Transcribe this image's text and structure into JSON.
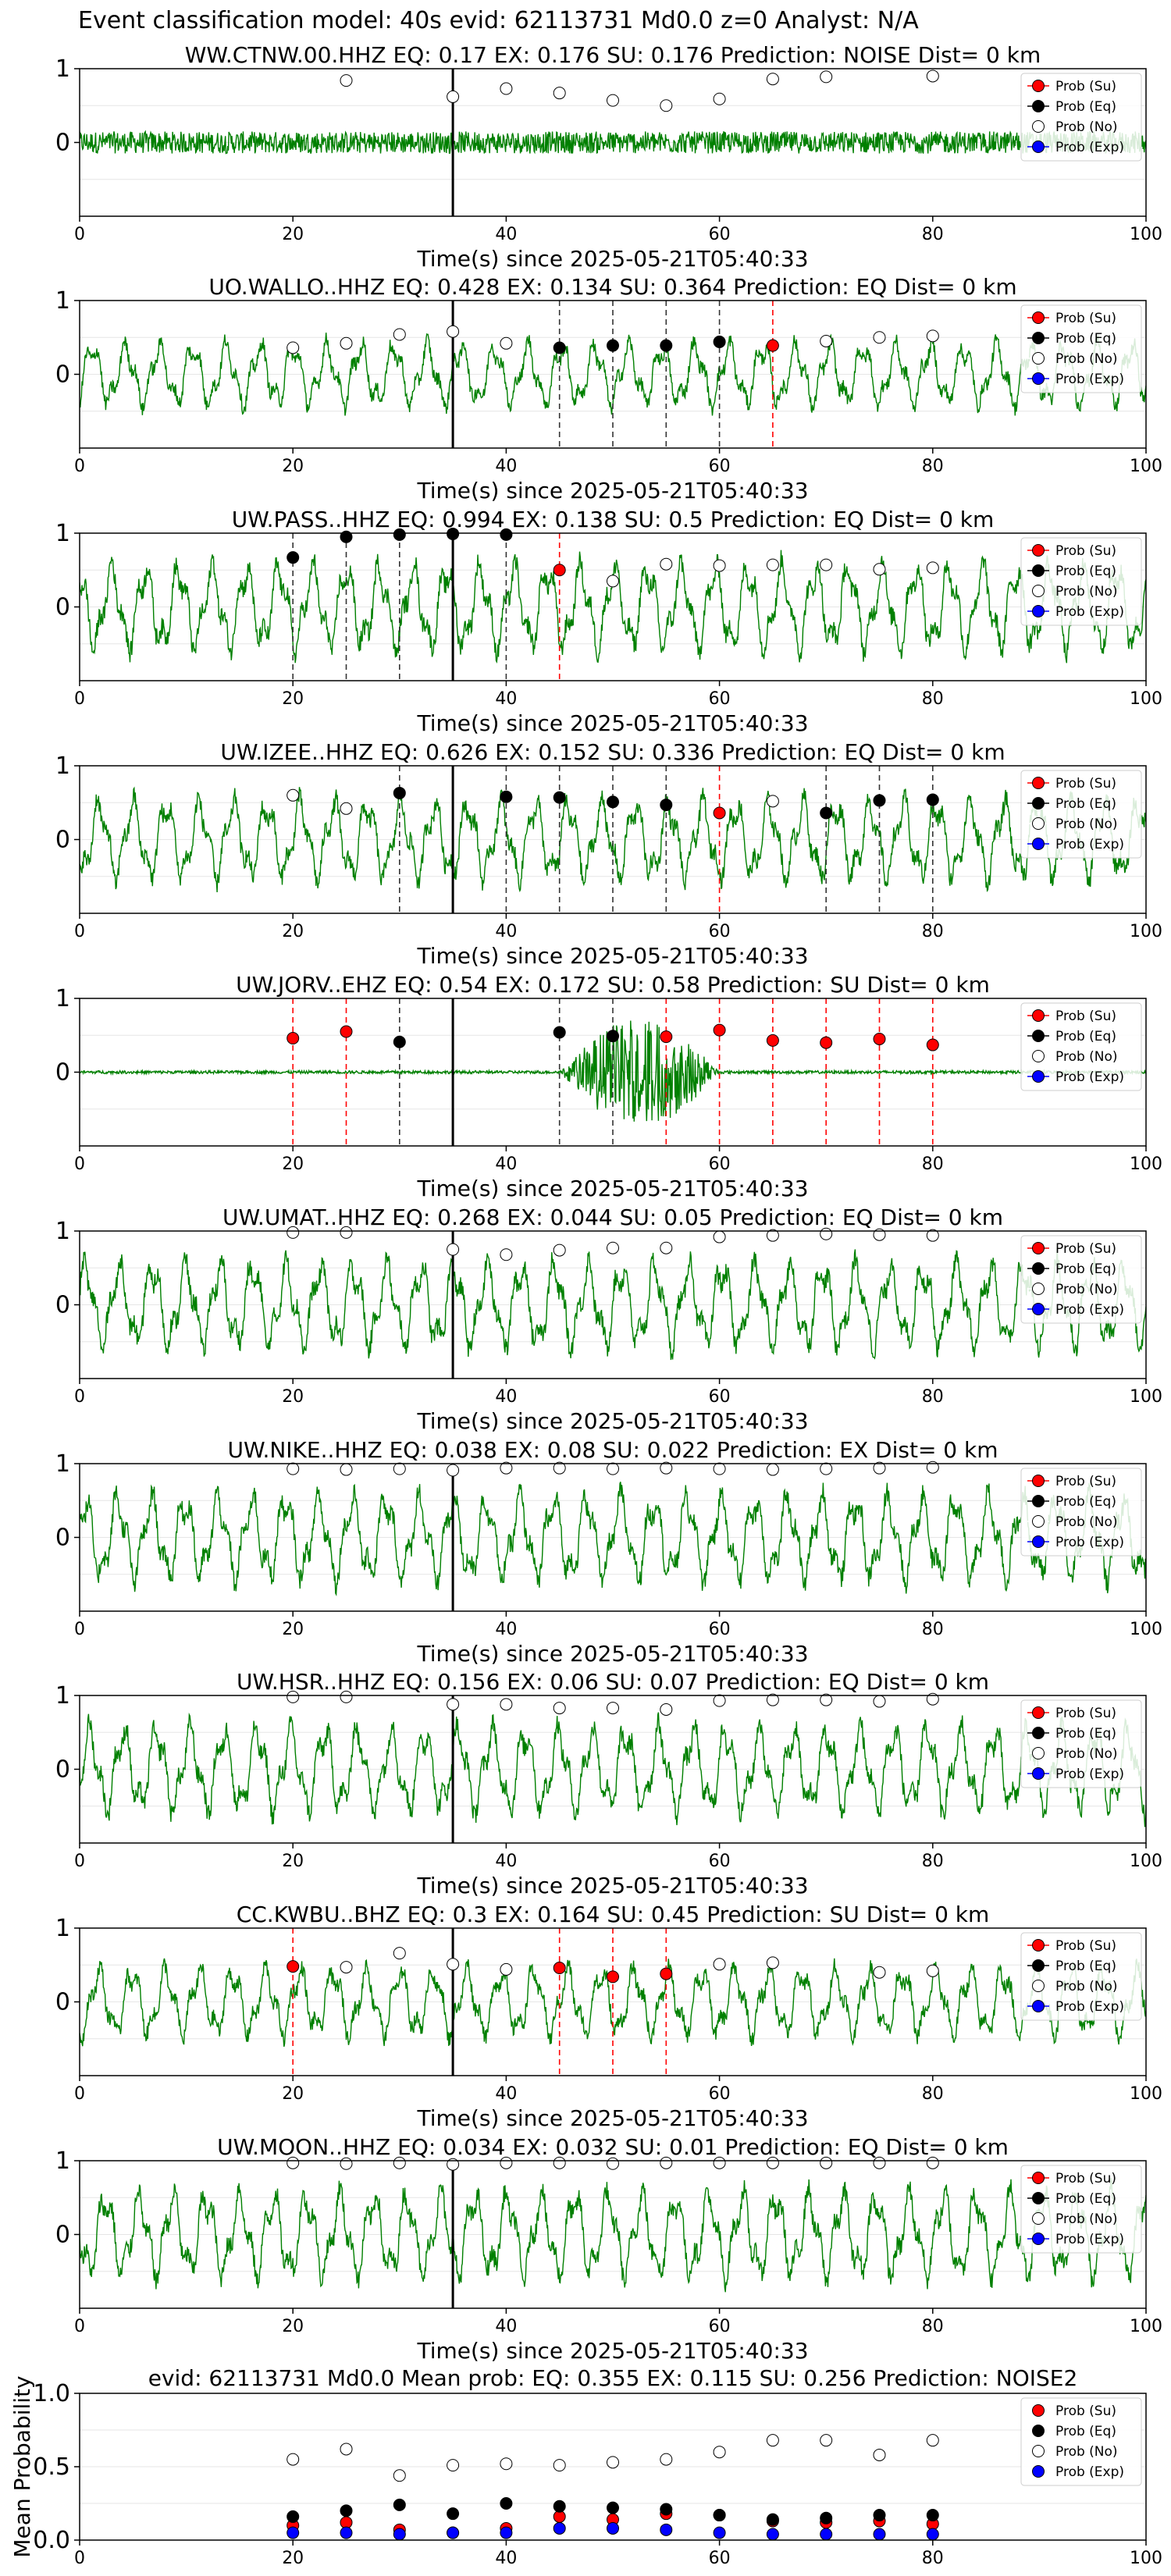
{
  "figure": {
    "suptitle": "Event classification model: 40s evid: 62113731 Md0.0 z=0 Analyst: N/A"
  },
  "colors": {
    "waveform": "#008000",
    "su": "#ff0000",
    "eq": "#000000",
    "no": "#ffffff",
    "exp": "#0000ff",
    "origin_line": "#000000"
  },
  "legend_labels": [
    "Prob (Su)",
    "Prob (Eq)",
    "Prob (No)",
    "Prob (Exp)"
  ],
  "chart_data": [
    {
      "type": "line",
      "panel": "station",
      "title": "WW.CTNW.00.HHZ   EQ: 0.17  EX: 0.176  SU: 0.176   Prediction: NOISE    Dist= 0 km",
      "xlabel": "Time(s) since 2025-05-21T05:40:33",
      "xlim": [
        0,
        100
      ],
      "ylim": [
        -1,
        1
      ],
      "xticks": [
        "0",
        "20",
        "40",
        "60",
        "80",
        "100"
      ],
      "yticks": [
        "1",
        "0"
      ],
      "origin_time": 35,
      "legend": "top-right",
      "waveform_amplitude": 0.15,
      "probabilities": [
        {
          "x": 25,
          "y": 0.84,
          "cls": "no"
        },
        {
          "x": 35,
          "y": 0.62,
          "cls": "no"
        },
        {
          "x": 40,
          "y": 0.73,
          "cls": "no"
        },
        {
          "x": 45,
          "y": 0.67,
          "cls": "no"
        },
        {
          "x": 50,
          "y": 0.57,
          "cls": "no"
        },
        {
          "x": 55,
          "y": 0.5,
          "cls": "no"
        },
        {
          "x": 60,
          "y": 0.59,
          "cls": "no"
        },
        {
          "x": 65,
          "y": 0.86,
          "cls": "no"
        },
        {
          "x": 70,
          "y": 0.89,
          "cls": "no"
        },
        {
          "x": 80,
          "y": 0.9,
          "cls": "no"
        }
      ]
    },
    {
      "type": "line",
      "panel": "station",
      "title": "UO.WALLO..HHZ   EQ: 0.428  EX: 0.134  SU: 0.364   Prediction: EQ    Dist= 0 km",
      "xlabel": "Time(s) since 2025-05-21T05:40:33",
      "xlim": [
        0,
        100
      ],
      "ylim": [
        -1,
        1
      ],
      "xticks": [
        "0",
        "20",
        "40",
        "60",
        "80",
        "100"
      ],
      "yticks": [
        "1",
        "0"
      ],
      "origin_time": 35,
      "legend": "top-right",
      "waveform_amplitude": 0.55,
      "probabilities": [
        {
          "x": 20,
          "y": 0.36,
          "cls": "no"
        },
        {
          "x": 25,
          "y": 0.42,
          "cls": "no"
        },
        {
          "x": 30,
          "y": 0.54,
          "cls": "no"
        },
        {
          "x": 35,
          "y": 0.58,
          "cls": "no"
        },
        {
          "x": 40,
          "y": 0.42,
          "cls": "no"
        },
        {
          "x": 45,
          "y": 0.36,
          "cls": "eq"
        },
        {
          "x": 50,
          "y": 0.39,
          "cls": "eq"
        },
        {
          "x": 55,
          "y": 0.39,
          "cls": "eq"
        },
        {
          "x": 60,
          "y": 0.44,
          "cls": "eq"
        },
        {
          "x": 65,
          "y": 0.39,
          "cls": "su"
        },
        {
          "x": 70,
          "y": 0.45,
          "cls": "no"
        },
        {
          "x": 75,
          "y": 0.5,
          "cls": "no"
        },
        {
          "x": 80,
          "y": 0.52,
          "cls": "no"
        }
      ]
    },
    {
      "type": "line",
      "panel": "station",
      "title": "UW.PASS..HHZ   EQ: 0.994  EX: 0.138  SU: 0.5   Prediction: EQ    Dist= 0 km",
      "xlabel": "Time(s) since 2025-05-21T05:40:33",
      "xlim": [
        0,
        100
      ],
      "ylim": [
        -1,
        1
      ],
      "xticks": [
        "0",
        "20",
        "40",
        "60",
        "80",
        "100"
      ],
      "yticks": [
        "1",
        "0"
      ],
      "origin_time": 35,
      "legend": "top-right",
      "waveform_amplitude": 0.75,
      "probabilities": [
        {
          "x": 20,
          "y": 0.67,
          "cls": "eq"
        },
        {
          "x": 25,
          "y": 0.95,
          "cls": "eq"
        },
        {
          "x": 30,
          "y": 0.98,
          "cls": "eq"
        },
        {
          "x": 35,
          "y": 0.99,
          "cls": "eq"
        },
        {
          "x": 40,
          "y": 0.98,
          "cls": "eq"
        },
        {
          "x": 45,
          "y": 0.5,
          "cls": "su"
        },
        {
          "x": 50,
          "y": 0.35,
          "cls": "no"
        },
        {
          "x": 55,
          "y": 0.58,
          "cls": "no"
        },
        {
          "x": 60,
          "y": 0.56,
          "cls": "no"
        },
        {
          "x": 65,
          "y": 0.57,
          "cls": "no"
        },
        {
          "x": 70,
          "y": 0.57,
          "cls": "no"
        },
        {
          "x": 75,
          "y": 0.51,
          "cls": "no"
        },
        {
          "x": 80,
          "y": 0.53,
          "cls": "no"
        }
      ]
    },
    {
      "type": "line",
      "panel": "station",
      "title": "UW.IZEE..HHZ   EQ: 0.626  EX: 0.152  SU: 0.336   Prediction: EQ    Dist= 0 km",
      "xlabel": "Time(s) since 2025-05-21T05:40:33",
      "xlim": [
        0,
        100
      ],
      "ylim": [
        -1,
        1
      ],
      "xticks": [
        "0",
        "20",
        "40",
        "60",
        "80",
        "100"
      ],
      "yticks": [
        "1",
        "0"
      ],
      "origin_time": 35,
      "legend": "top-right",
      "waveform_amplitude": 0.7,
      "probabilities": [
        {
          "x": 20,
          "y": 0.6,
          "cls": "no"
        },
        {
          "x": 25,
          "y": 0.42,
          "cls": "no"
        },
        {
          "x": 30,
          "y": 0.63,
          "cls": "eq"
        },
        {
          "x": 40,
          "y": 0.58,
          "cls": "eq"
        },
        {
          "x": 45,
          "y": 0.57,
          "cls": "eq"
        },
        {
          "x": 50,
          "y": 0.51,
          "cls": "eq"
        },
        {
          "x": 55,
          "y": 0.47,
          "cls": "eq"
        },
        {
          "x": 60,
          "y": 0.36,
          "cls": "su"
        },
        {
          "x": 65,
          "y": 0.52,
          "cls": "no"
        },
        {
          "x": 70,
          "y": 0.36,
          "cls": "eq"
        },
        {
          "x": 75,
          "y": 0.53,
          "cls": "eq"
        },
        {
          "x": 80,
          "y": 0.54,
          "cls": "eq"
        }
      ]
    },
    {
      "type": "line",
      "panel": "station",
      "title": "UW.JORV..EHZ   EQ: 0.54  EX: 0.172  SU: 0.58   Prediction: SU    Dist= 0 km",
      "xlabel": "Time(s) since 2025-05-21T05:40:33",
      "xlim": [
        0,
        100
      ],
      "ylim": [
        -1,
        1
      ],
      "xticks": [
        "0",
        "20",
        "40",
        "60",
        "80",
        "100"
      ],
      "yticks": [
        "1",
        "0"
      ],
      "origin_time": 35,
      "legend": "top-right",
      "waveform_amplitude": 0.02,
      "burst": {
        "start": 45,
        "end": 60,
        "amplitude": 0.75
      },
      "probabilities": [
        {
          "x": 20,
          "y": 0.46,
          "cls": "su"
        },
        {
          "x": 25,
          "y": 0.55,
          "cls": "su"
        },
        {
          "x": 30,
          "y": 0.41,
          "cls": "eq"
        },
        {
          "x": 45,
          "y": 0.54,
          "cls": "eq"
        },
        {
          "x": 50,
          "y": 0.49,
          "cls": "eq"
        },
        {
          "x": 55,
          "y": 0.48,
          "cls": "su"
        },
        {
          "x": 60,
          "y": 0.57,
          "cls": "su"
        },
        {
          "x": 65,
          "y": 0.43,
          "cls": "su"
        },
        {
          "x": 70,
          "y": 0.4,
          "cls": "su"
        },
        {
          "x": 75,
          "y": 0.45,
          "cls": "su"
        },
        {
          "x": 80,
          "y": 0.37,
          "cls": "su"
        }
      ]
    },
    {
      "type": "line",
      "panel": "station",
      "title": "UW.UMAT..HHZ   EQ: 0.268  EX: 0.044  SU: 0.05   Prediction: EQ    Dist= 0 km",
      "xlabel": "Time(s) since 2025-05-21T05:40:33",
      "xlim": [
        0,
        100
      ],
      "ylim": [
        -1,
        1
      ],
      "xticks": [
        "0",
        "20",
        "40",
        "60",
        "80",
        "100"
      ],
      "yticks": [
        "1",
        "0"
      ],
      "origin_time": 35,
      "legend": "top-right",
      "waveform_amplitude": 0.75,
      "probabilities": [
        {
          "x": 20,
          "y": 0.98,
          "cls": "no"
        },
        {
          "x": 25,
          "y": 0.98,
          "cls": "no"
        },
        {
          "x": 35,
          "y": 0.75,
          "cls": "no"
        },
        {
          "x": 40,
          "y": 0.68,
          "cls": "no"
        },
        {
          "x": 45,
          "y": 0.74,
          "cls": "no"
        },
        {
          "x": 50,
          "y": 0.77,
          "cls": "no"
        },
        {
          "x": 55,
          "y": 0.77,
          "cls": "no"
        },
        {
          "x": 60,
          "y": 0.92,
          "cls": "no"
        },
        {
          "x": 65,
          "y": 0.94,
          "cls": "no"
        },
        {
          "x": 70,
          "y": 0.96,
          "cls": "no"
        },
        {
          "x": 75,
          "y": 0.95,
          "cls": "no"
        },
        {
          "x": 80,
          "y": 0.94,
          "cls": "no"
        }
      ]
    },
    {
      "type": "line",
      "panel": "station",
      "title": "UW.NIKE..HHZ   EQ: 0.038  EX: 0.08  SU: 0.022   Prediction: EX    Dist= 0 km",
      "xlabel": "Time(s) since 2025-05-21T05:40:33",
      "xlim": [
        0,
        100
      ],
      "ylim": [
        -1,
        1
      ],
      "xticks": [
        "0",
        "20",
        "40",
        "60",
        "80",
        "100"
      ],
      "yticks": [
        "1",
        "0"
      ],
      "origin_time": 35,
      "legend": "top-right",
      "waveform_amplitude": 0.75,
      "probabilities": [
        {
          "x": 20,
          "y": 0.93,
          "cls": "no"
        },
        {
          "x": 25,
          "y": 0.92,
          "cls": "no"
        },
        {
          "x": 30,
          "y": 0.93,
          "cls": "no"
        },
        {
          "x": 35,
          "y": 0.91,
          "cls": "no"
        },
        {
          "x": 40,
          "y": 0.94,
          "cls": "no"
        },
        {
          "x": 45,
          "y": 0.94,
          "cls": "no"
        },
        {
          "x": 50,
          "y": 0.93,
          "cls": "no"
        },
        {
          "x": 55,
          "y": 0.94,
          "cls": "no"
        },
        {
          "x": 60,
          "y": 0.93,
          "cls": "no"
        },
        {
          "x": 65,
          "y": 0.92,
          "cls": "no"
        },
        {
          "x": 70,
          "y": 0.93,
          "cls": "no"
        },
        {
          "x": 75,
          "y": 0.94,
          "cls": "no"
        },
        {
          "x": 80,
          "y": 0.95,
          "cls": "no"
        }
      ]
    },
    {
      "type": "line",
      "panel": "station",
      "title": "UW.HSR..HHZ   EQ: 0.156  EX: 0.06  SU: 0.07   Prediction: EQ    Dist= 0 km",
      "xlabel": "Time(s) since 2025-05-21T05:40:33",
      "xlim": [
        0,
        100
      ],
      "ylim": [
        -1,
        1
      ],
      "xticks": [
        "0",
        "20",
        "40",
        "60",
        "80",
        "100"
      ],
      "yticks": [
        "1",
        "0"
      ],
      "origin_time": 35,
      "legend": "top-right",
      "waveform_amplitude": 0.75,
      "probabilities": [
        {
          "x": 20,
          "y": 0.98,
          "cls": "no"
        },
        {
          "x": 25,
          "y": 0.98,
          "cls": "no"
        },
        {
          "x": 35,
          "y": 0.88,
          "cls": "no"
        },
        {
          "x": 40,
          "y": 0.88,
          "cls": "no"
        },
        {
          "x": 45,
          "y": 0.83,
          "cls": "no"
        },
        {
          "x": 50,
          "y": 0.83,
          "cls": "no"
        },
        {
          "x": 55,
          "y": 0.81,
          "cls": "no"
        },
        {
          "x": 60,
          "y": 0.93,
          "cls": "no"
        },
        {
          "x": 65,
          "y": 0.94,
          "cls": "no"
        },
        {
          "x": 70,
          "y": 0.94,
          "cls": "no"
        },
        {
          "x": 75,
          "y": 0.92,
          "cls": "no"
        },
        {
          "x": 80,
          "y": 0.95,
          "cls": "no"
        }
      ]
    },
    {
      "type": "line",
      "panel": "station",
      "title": "CC.KWBU..BHZ   EQ: 0.3  EX: 0.164  SU: 0.45   Prediction: SU    Dist= 0 km",
      "xlabel": "Time(s) since 2025-05-21T05:40:33",
      "xlim": [
        0,
        100
      ],
      "ylim": [
        -1,
        1
      ],
      "xticks": [
        "0",
        "20",
        "40",
        "60",
        "80",
        "100"
      ],
      "yticks": [
        "1",
        "0"
      ],
      "origin_time": 35,
      "legend": "top-right",
      "waveform_amplitude": 0.6,
      "probabilities": [
        {
          "x": 20,
          "y": 0.48,
          "cls": "su"
        },
        {
          "x": 25,
          "y": 0.47,
          "cls": "no"
        },
        {
          "x": 30,
          "y": 0.66,
          "cls": "no"
        },
        {
          "x": 35,
          "y": 0.51,
          "cls": "no"
        },
        {
          "x": 40,
          "y": 0.44,
          "cls": "no"
        },
        {
          "x": 45,
          "y": 0.46,
          "cls": "su"
        },
        {
          "x": 50,
          "y": 0.34,
          "cls": "su"
        },
        {
          "x": 55,
          "y": 0.38,
          "cls": "su"
        },
        {
          "x": 60,
          "y": 0.51,
          "cls": "no"
        },
        {
          "x": 65,
          "y": 0.53,
          "cls": "no"
        },
        {
          "x": 75,
          "y": 0.4,
          "cls": "no"
        },
        {
          "x": 80,
          "y": 0.42,
          "cls": "no"
        }
      ]
    },
    {
      "type": "line",
      "panel": "station",
      "title": "UW.MOON..HHZ   EQ: 0.034  EX: 0.032  SU: 0.01   Prediction: EQ    Dist= 0 km",
      "xlabel": "Time(s) since 2025-05-21T05:40:33",
      "xlim": [
        0,
        100
      ],
      "ylim": [
        -1,
        1
      ],
      "xticks": [
        "0",
        "20",
        "40",
        "60",
        "80",
        "100"
      ],
      "yticks": [
        "1",
        "0"
      ],
      "origin_time": 35,
      "legend": "top-right",
      "waveform_amplitude": 0.75,
      "probabilities": [
        {
          "x": 20,
          "y": 0.97,
          "cls": "no"
        },
        {
          "x": 25,
          "y": 0.96,
          "cls": "no"
        },
        {
          "x": 30,
          "y": 0.97,
          "cls": "no"
        },
        {
          "x": 35,
          "y": 0.95,
          "cls": "no"
        },
        {
          "x": 40,
          "y": 0.97,
          "cls": "no"
        },
        {
          "x": 45,
          "y": 0.97,
          "cls": "no"
        },
        {
          "x": 50,
          "y": 0.96,
          "cls": "no"
        },
        {
          "x": 55,
          "y": 0.97,
          "cls": "no"
        },
        {
          "x": 60,
          "y": 0.97,
          "cls": "no"
        },
        {
          "x": 65,
          "y": 0.97,
          "cls": "no"
        },
        {
          "x": 70,
          "y": 0.97,
          "cls": "no"
        },
        {
          "x": 75,
          "y": 0.97,
          "cls": "no"
        },
        {
          "x": 80,
          "y": 0.97,
          "cls": "no"
        }
      ]
    },
    {
      "type": "scatter",
      "panel": "mean",
      "title": "evid: 62113731  Md0.0   Mean prob:   EQ: 0.355  EX: 0.115  SU: 0.256   Prediction: NOISE2",
      "ylabel": "Mean Probability",
      "xlim": [
        0,
        100
      ],
      "ylim": [
        0,
        1
      ],
      "xticks": [
        "0",
        "20",
        "40",
        "60",
        "80",
        "100"
      ],
      "yticks": [
        "1.0",
        "0.5",
        "0.0"
      ],
      "legend": "top-right",
      "x": [
        20,
        25,
        30,
        35,
        40,
        45,
        50,
        55,
        60,
        65,
        70,
        75,
        80
      ],
      "series": [
        {
          "name": "Prob (Su)",
          "cls": "su",
          "values": [
            0.1,
            0.12,
            0.07,
            0.05,
            0.08,
            0.16,
            0.14,
            0.18,
            0.17,
            0.13,
            0.12,
            0.13,
            0.11
          ]
        },
        {
          "name": "Prob (Eq)",
          "cls": "eq",
          "values": [
            0.16,
            0.2,
            0.24,
            0.18,
            0.25,
            0.23,
            0.22,
            0.21,
            0.17,
            0.14,
            0.15,
            0.17,
            0.17
          ]
        },
        {
          "name": "Prob (No)",
          "cls": "no",
          "values": [
            0.55,
            0.62,
            0.44,
            0.51,
            0.52,
            0.51,
            0.53,
            0.55,
            0.6,
            0.68,
            0.68,
            0.58,
            0.68
          ]
        },
        {
          "name": "Prob (Exp)",
          "cls": "exp",
          "values": [
            0.05,
            0.05,
            0.04,
            0.05,
            0.05,
            0.08,
            0.08,
            0.07,
            0.05,
            0.04,
            0.04,
            0.04,
            0.04
          ]
        }
      ]
    }
  ]
}
